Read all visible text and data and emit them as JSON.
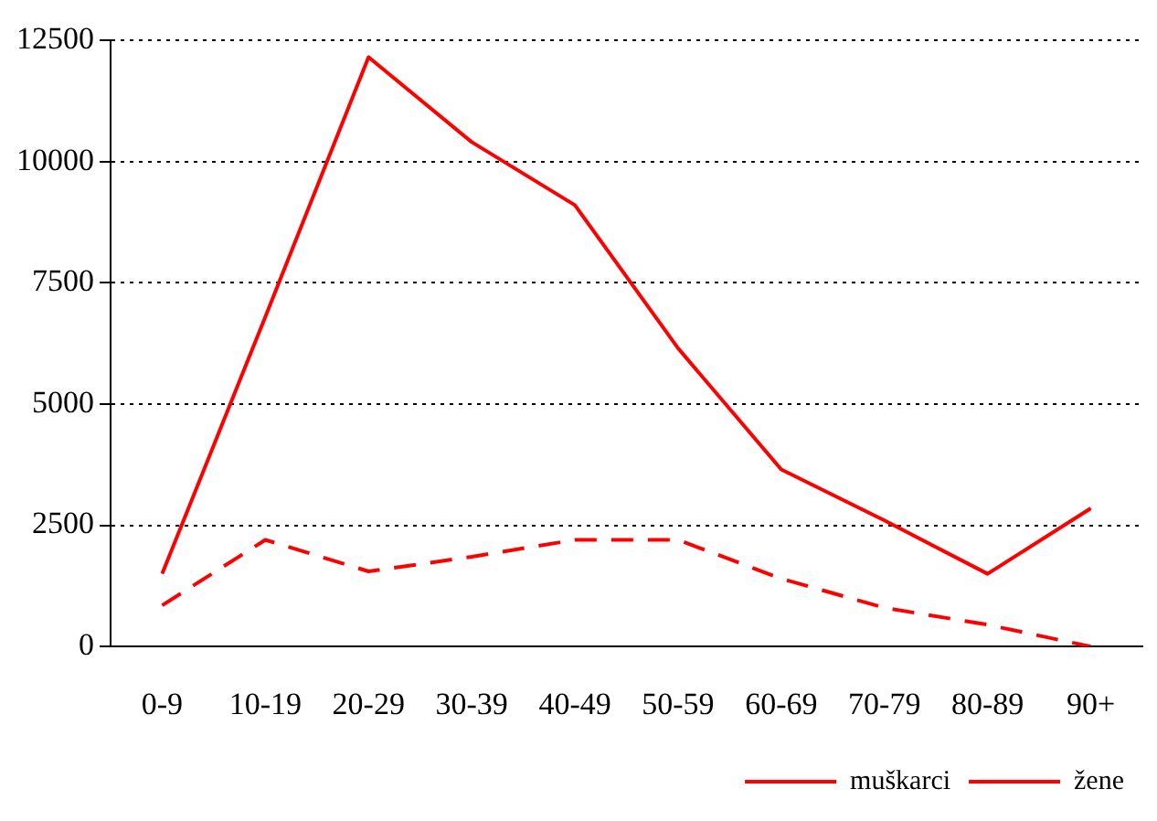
{
  "chart_data": {
    "type": "line",
    "categories": [
      "0-9",
      "10-19",
      "20-29",
      "30-39",
      "40-49",
      "50-59",
      "60-69",
      "70-79",
      "80-89",
      "90+"
    ],
    "series": [
      {
        "name": "muškarci",
        "color": "#ff0000",
        "line_style": "solid",
        "values": [
          1500,
          6800,
          12150,
          10400,
          9100,
          6150,
          3650,
          2600,
          1500,
          2850
        ]
      },
      {
        "name": "žene",
        "color": "#ff0000",
        "line_style": "dashed",
        "values": [
          850,
          2200,
          1550,
          1850,
          2200,
          2200,
          1400,
          800,
          450,
          0
        ]
      }
    ],
    "ylim": [
      0,
      12500
    ],
    "yticks": [
      0,
      2500,
      5000,
      7500,
      10000,
      12500
    ],
    "grid": "y",
    "legend": "bottom right",
    "marker": "none"
  }
}
